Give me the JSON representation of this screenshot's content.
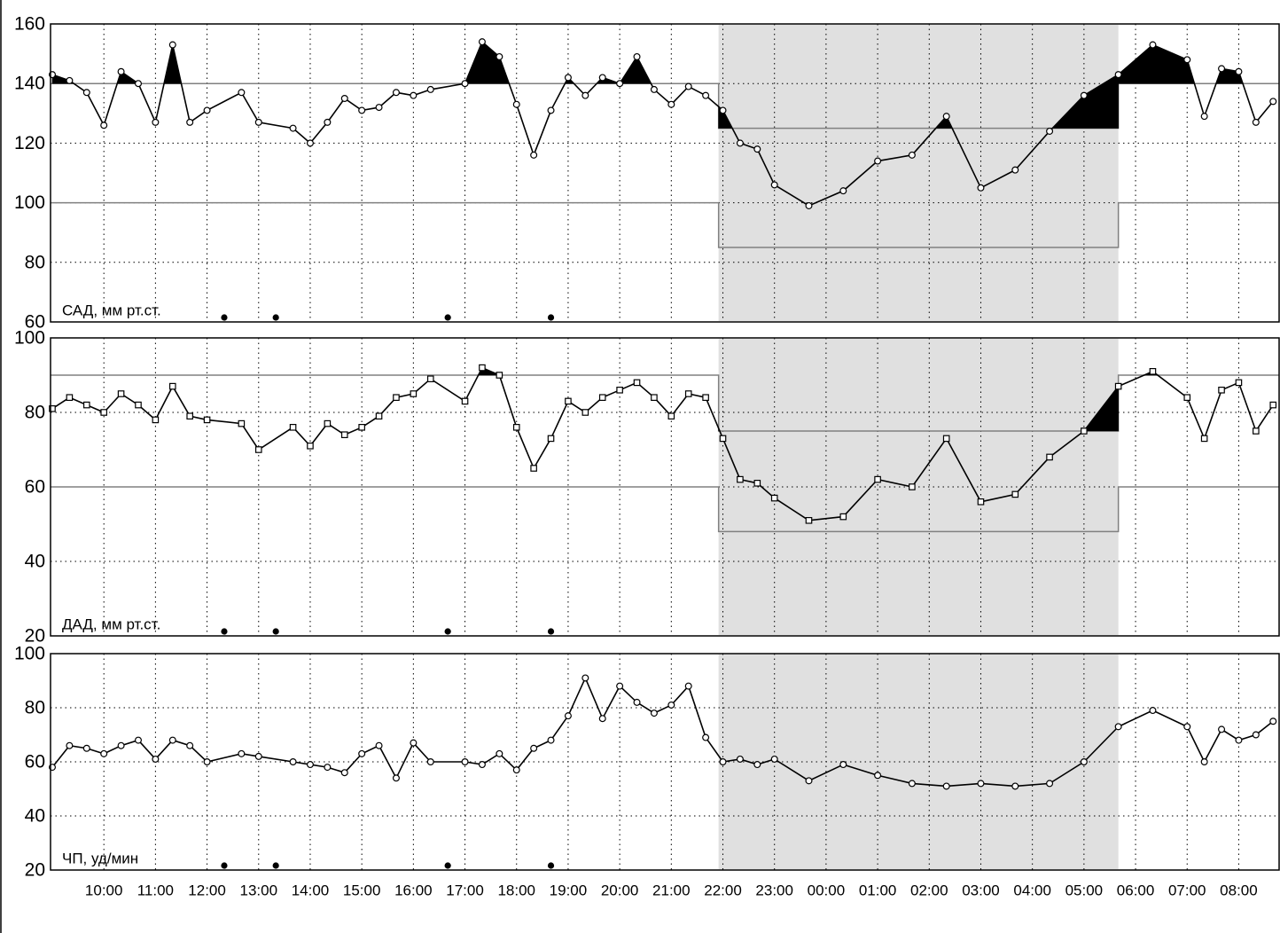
{
  "time_axis": {
    "xlim": [
      0,
      1428
    ],
    "xticks": [
      {
        "value": 60,
        "label": "10:00"
      },
      {
        "value": 120,
        "label": "11:00"
      },
      {
        "value": 180,
        "label": "12:00"
      },
      {
        "value": 240,
        "label": "13:00"
      },
      {
        "value": 300,
        "label": "14:00"
      },
      {
        "value": 360,
        "label": "15:00"
      },
      {
        "value": 420,
        "label": "16:00"
      },
      {
        "value": 480,
        "label": "17:00"
      },
      {
        "value": 540,
        "label": "18:00"
      },
      {
        "value": 600,
        "label": "19:00"
      },
      {
        "value": 660,
        "label": "20:00"
      },
      {
        "value": 720,
        "label": "21:00"
      },
      {
        "value": 780,
        "label": "22:00"
      },
      {
        "value": 840,
        "label": "23:00"
      },
      {
        "value": 900,
        "label": "00:00"
      },
      {
        "value": 960,
        "label": "01:00"
      },
      {
        "value": 1020,
        "label": "02:00"
      },
      {
        "value": 1080,
        "label": "03:00"
      },
      {
        "value": 1140,
        "label": "04:00"
      },
      {
        "value": 1200,
        "label": "05:00"
      },
      {
        "value": 1260,
        "label": "06:00"
      },
      {
        "value": 1320,
        "label": "07:00"
      },
      {
        "value": 1380,
        "label": "08:00"
      }
    ],
    "night_period": [
      775,
      1240
    ],
    "night_color": "#e0e0e0",
    "grid": true
  },
  "chart_data": [
    {
      "type": "line",
      "label": "САД, мм рт.ст.",
      "marker": "circle",
      "color": "#000000",
      "ylim": [
        60,
        160
      ],
      "yticks": [
        60,
        80,
        100,
        120,
        140,
        160
      ],
      "thresholds": {
        "day": [
          100,
          140
        ],
        "night": [
          85,
          125
        ]
      },
      "threshold_color": "#808080",
      "excess_color": "#000000",
      "events": [
        200,
        260,
        460,
        580
      ],
      "x": [
        0,
        20,
        40,
        60,
        80,
        100,
        120,
        140,
        160,
        180,
        220,
        240,
        280,
        300,
        320,
        340,
        360,
        380,
        400,
        420,
        440,
        480,
        500,
        520,
        540,
        560,
        580,
        600,
        620,
        640,
        660,
        680,
        700,
        720,
        740,
        760,
        780,
        800,
        820,
        840,
        880,
        920,
        960,
        1000,
        1040,
        1080,
        1120,
        1160,
        1200,
        1240,
        1280,
        1320,
        1340,
        1360,
        1380,
        1400,
        1420
      ],
      "values": [
        143,
        141,
        137,
        126,
        144,
        140,
        127,
        153,
        127,
        131,
        137,
        127,
        125,
        120,
        127,
        135,
        131,
        132,
        137,
        136,
        138,
        140,
        154,
        149,
        133,
        116,
        131,
        142,
        136,
        142,
        140,
        149,
        138,
        133,
        139,
        136,
        131,
        120,
        118,
        106,
        99,
        104,
        114,
        116,
        129,
        105,
        111,
        124,
        136,
        143,
        153,
        148,
        129,
        145,
        144,
        127,
        134
      ]
    },
    {
      "type": "line",
      "label": "ДАД, мм рт.ст.",
      "marker": "square",
      "color": "#000000",
      "ylim": [
        20,
        100
      ],
      "yticks": [
        20,
        40,
        60,
        80,
        100
      ],
      "thresholds": {
        "day": [
          60,
          90
        ],
        "night": [
          48,
          75
        ]
      },
      "threshold_color": "#808080",
      "excess_color": "#000000",
      "events": [
        200,
        260,
        460,
        580
      ],
      "x": [
        0,
        20,
        40,
        60,
        80,
        100,
        120,
        140,
        160,
        180,
        220,
        240,
        280,
        300,
        320,
        340,
        360,
        380,
        400,
        420,
        440,
        480,
        500,
        520,
        540,
        560,
        580,
        600,
        620,
        640,
        660,
        680,
        700,
        720,
        740,
        760,
        780,
        800,
        820,
        840,
        880,
        920,
        960,
        1000,
        1040,
        1080,
        1120,
        1160,
        1200,
        1240,
        1280,
        1320,
        1340,
        1360,
        1380,
        1400,
        1420
      ],
      "values": [
        81,
        84,
        82,
        80,
        85,
        82,
        78,
        87,
        79,
        78,
        77,
        70,
        76,
        71,
        77,
        74,
        76,
        79,
        84,
        85,
        89,
        83,
        92,
        90,
        76,
        65,
        73,
        83,
        80,
        84,
        86,
        88,
        84,
        79,
        85,
        84,
        73,
        62,
        61,
        57,
        51,
        52,
        62,
        60,
        73,
        56,
        58,
        68,
        75,
        87,
        91,
        84,
        73,
        86,
        88,
        75,
        82
      ]
    },
    {
      "type": "line",
      "label": "ЧП, уд/мин",
      "marker": "circle",
      "color": "#000000",
      "ylim": [
        20,
        100
      ],
      "yticks": [
        20,
        40,
        60,
        80,
        100
      ],
      "events": [
        200,
        260,
        460,
        580
      ],
      "x": [
        0,
        20,
        40,
        60,
        80,
        100,
        120,
        140,
        160,
        180,
        220,
        240,
        280,
        300,
        320,
        340,
        360,
        380,
        400,
        420,
        440,
        480,
        500,
        520,
        540,
        560,
        580,
        600,
        620,
        640,
        660,
        680,
        700,
        720,
        740,
        760,
        780,
        800,
        820,
        840,
        880,
        920,
        960,
        1000,
        1040,
        1080,
        1120,
        1160,
        1200,
        1240,
        1280,
        1320,
        1340,
        1360,
        1380,
        1400,
        1420
      ],
      "values": [
        58,
        66,
        65,
        63,
        66,
        68,
        61,
        68,
        66,
        60,
        63,
        62,
        60,
        59,
        58,
        56,
        63,
        66,
        54,
        67,
        60,
        60,
        59,
        63,
        57,
        65,
        68,
        77,
        91,
        76,
        88,
        82,
        78,
        81,
        88,
        69,
        60,
        61,
        59,
        61,
        53,
        59,
        55,
        52,
        51,
        52,
        51,
        52,
        60,
        73,
        79,
        73,
        60,
        72,
        68,
        70,
        75
      ]
    }
  ]
}
